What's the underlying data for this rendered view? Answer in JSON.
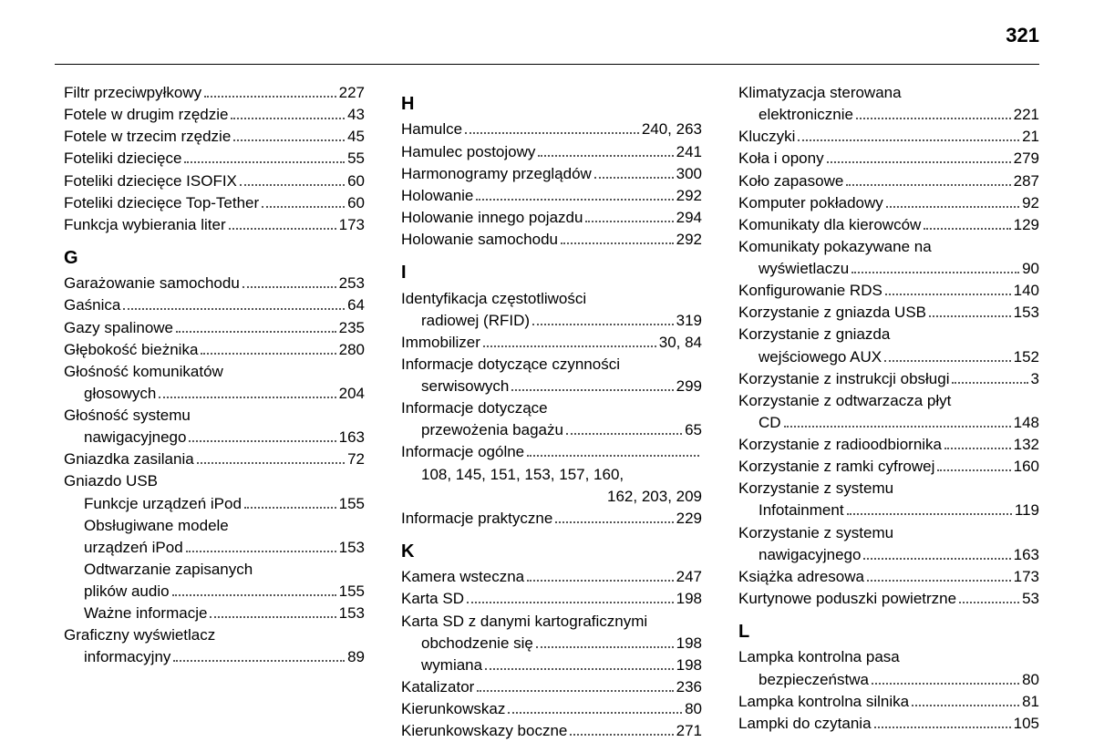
{
  "page_number": "321",
  "font_size_body": 17,
  "font_size_pagenum": 22,
  "color_text": "#000000",
  "color_bg": "#ffffff",
  "columns": [
    {
      "items": [
        {
          "type": "entry",
          "indent": 0,
          "label": "Filtr przeciwpyłkowy",
          "page": "227"
        },
        {
          "type": "entry",
          "indent": 0,
          "label": "Fotele w drugim rzędzie",
          "page": "43"
        },
        {
          "type": "entry",
          "indent": 0,
          "label": "Fotele w trzecim rzędzie",
          "page": "45"
        },
        {
          "type": "entry",
          "indent": 0,
          "label": "Foteliki dziecięce",
          "page": "55"
        },
        {
          "type": "entry",
          "indent": 0,
          "label": "Foteliki dziecięce ISOFIX",
          "page": "60"
        },
        {
          "type": "entry",
          "indent": 0,
          "label": "Foteliki dziecięce Top-Tether",
          "page": "60"
        },
        {
          "type": "entry",
          "indent": 0,
          "label": "Funkcja wybierania liter",
          "page": "173"
        },
        {
          "type": "letter",
          "value": "G"
        },
        {
          "type": "entry",
          "indent": 0,
          "label": "Garażowanie samochodu",
          "page": "253"
        },
        {
          "type": "entry",
          "indent": 0,
          "label": "Gaśnica",
          "page": "64"
        },
        {
          "type": "entry",
          "indent": 0,
          "label": "Gazy spalinowe",
          "page": "235"
        },
        {
          "type": "entry",
          "indent": 0,
          "label": "Głębokość bieżnika",
          "page": "280"
        },
        {
          "type": "text",
          "indent": 0,
          "value": "Głośność komunikatów"
        },
        {
          "type": "entry",
          "indent": 1,
          "label": "głosowych",
          "page": "204"
        },
        {
          "type": "text",
          "indent": 0,
          "value": "Głośność systemu"
        },
        {
          "type": "entry",
          "indent": 1,
          "label": "nawigacyjnego",
          "page": "163"
        },
        {
          "type": "entry",
          "indent": 0,
          "label": "Gniazdka zasilania",
          "page": "72"
        },
        {
          "type": "text",
          "indent": 0,
          "value": "Gniazdo USB"
        },
        {
          "type": "entry",
          "indent": 1,
          "label": "Funkcje urządzeń iPod",
          "page": "155"
        },
        {
          "type": "text",
          "indent": 1,
          "value": "Obsługiwane modele"
        },
        {
          "type": "entry",
          "indent": 1,
          "label": "urządzeń iPod",
          "page": "153"
        },
        {
          "type": "text",
          "indent": 1,
          "value": "Odtwarzanie zapisanych"
        },
        {
          "type": "entry",
          "indent": 1,
          "label": "plików audio",
          "page": "155"
        },
        {
          "type": "entry",
          "indent": 1,
          "label": "Ważne informacje",
          "page": "153"
        },
        {
          "type": "text",
          "indent": 0,
          "value": "Graficzny wyświetlacz"
        },
        {
          "type": "entry",
          "indent": 1,
          "label": "informacyjny",
          "page": "89"
        }
      ]
    },
    {
      "items": [
        {
          "type": "letter",
          "value": "H"
        },
        {
          "type": "entry",
          "indent": 0,
          "label": "Hamulce",
          "page": "240, 263"
        },
        {
          "type": "entry",
          "indent": 0,
          "label": "Hamulec postojowy",
          "page": "241"
        },
        {
          "type": "entry",
          "indent": 0,
          "label": "Harmonogramy przeglądów",
          "page": "300"
        },
        {
          "type": "entry",
          "indent": 0,
          "label": "Holowanie",
          "page": "292"
        },
        {
          "type": "entry",
          "indent": 0,
          "label": "Holowanie innego pojazdu",
          "page": "294"
        },
        {
          "type": "entry",
          "indent": 0,
          "label": "Holowanie samochodu",
          "page": "292"
        },
        {
          "type": "letter",
          "value": "I"
        },
        {
          "type": "text",
          "indent": 0,
          "value": "Identyfikacja częstotliwości"
        },
        {
          "type": "entry",
          "indent": 1,
          "label": "radiowej (RFID)",
          "page": "319"
        },
        {
          "type": "entry",
          "indent": 0,
          "label": "Immobilizer",
          "page": "30, 84"
        },
        {
          "type": "text",
          "indent": 0,
          "value": "Informacje dotyczące czynności"
        },
        {
          "type": "entry",
          "indent": 1,
          "label": "serwisowych",
          "page": "299"
        },
        {
          "type": "text",
          "indent": 0,
          "value": "Informacje dotyczące"
        },
        {
          "type": "entry",
          "indent": 1,
          "label": "przewożenia bagażu",
          "page": "65"
        },
        {
          "type": "entry_nodots",
          "indent": 0,
          "label": "Informacje ogólne",
          "page": ""
        },
        {
          "type": "text",
          "indent": 1,
          "value": "108, 145, 151, 153, 157, 160,"
        },
        {
          "type": "text_right",
          "value": "162, 203, 209"
        },
        {
          "type": "entry",
          "indent": 0,
          "label": "Informacje praktyczne",
          "page": "229"
        },
        {
          "type": "letter",
          "value": "K"
        },
        {
          "type": "entry",
          "indent": 0,
          "label": "Kamera wsteczna",
          "page": "247"
        },
        {
          "type": "entry",
          "indent": 0,
          "label": "Karta SD",
          "page": "198"
        },
        {
          "type": "text",
          "indent": 0,
          "value": "Karta SD z danymi kartograficznymi"
        },
        {
          "type": "entry",
          "indent": 1,
          "label": "obchodzenie się",
          "page": "198"
        },
        {
          "type": "entry",
          "indent": 1,
          "label": "wymiana",
          "page": "198"
        },
        {
          "type": "entry",
          "indent": 0,
          "label": "Katalizator",
          "page": "236"
        },
        {
          "type": "entry",
          "indent": 0,
          "label": "Kierunkowskaz",
          "page": "80"
        },
        {
          "type": "entry",
          "indent": 0,
          "label": "Kierunkowskazy boczne",
          "page": "271"
        }
      ]
    },
    {
      "items": [
        {
          "type": "text",
          "indent": 0,
          "value": "Klimatyzacja sterowana"
        },
        {
          "type": "entry",
          "indent": 1,
          "label": "elektronicznie",
          "page": "221"
        },
        {
          "type": "entry",
          "indent": 0,
          "label": "Kluczyki",
          "page": "21"
        },
        {
          "type": "entry",
          "indent": 0,
          "label": "Koła i opony",
          "page": "279"
        },
        {
          "type": "entry",
          "indent": 0,
          "label": "Koło zapasowe",
          "page": "287"
        },
        {
          "type": "entry",
          "indent": 0,
          "label": "Komputer pokładowy",
          "page": "92"
        },
        {
          "type": "entry",
          "indent": 0,
          "label": "Komunikaty dla kierowców",
          "page": "129"
        },
        {
          "type": "text",
          "indent": 0,
          "value": "Komunikaty pokazywane na"
        },
        {
          "type": "entry",
          "indent": 1,
          "label": "wyświetlaczu",
          "page": "90"
        },
        {
          "type": "entry",
          "indent": 0,
          "label": "Konfigurowanie RDS",
          "page": "140"
        },
        {
          "type": "entry",
          "indent": 0,
          "label": "Korzystanie z gniazda USB",
          "page": "153"
        },
        {
          "type": "text",
          "indent": 0,
          "value": "Korzystanie z gniazda"
        },
        {
          "type": "entry",
          "indent": 1,
          "label": "wejściowego AUX",
          "page": "152"
        },
        {
          "type": "entry",
          "indent": 0,
          "label": "Korzystanie z instrukcji obsługi",
          "page": "3"
        },
        {
          "type": "text",
          "indent": 0,
          "value": "Korzystanie z odtwarzacza płyt"
        },
        {
          "type": "entry",
          "indent": 1,
          "label": "CD",
          "page": "148"
        },
        {
          "type": "entry",
          "indent": 0,
          "label": "Korzystanie z radioodbiornika",
          "page": "132"
        },
        {
          "type": "entry",
          "indent": 0,
          "label": "Korzystanie z ramki cyfrowej",
          "page": "160"
        },
        {
          "type": "text",
          "indent": 0,
          "value": "Korzystanie z systemu"
        },
        {
          "type": "entry",
          "indent": 1,
          "label": "Infotainment",
          "page": "119"
        },
        {
          "type": "text",
          "indent": 0,
          "value": "Korzystanie z systemu"
        },
        {
          "type": "entry",
          "indent": 1,
          "label": "nawigacyjnego",
          "page": "163"
        },
        {
          "type": "entry",
          "indent": 0,
          "label": "Książka adresowa",
          "page": "173"
        },
        {
          "type": "entry",
          "indent": 0,
          "label": "Kurtynowe poduszki powietrzne",
          "page": "53"
        },
        {
          "type": "letter",
          "value": "L"
        },
        {
          "type": "text",
          "indent": 0,
          "value": "Lampka kontrolna pasa"
        },
        {
          "type": "entry",
          "indent": 1,
          "label": "bezpieczeństwa",
          "page": "80"
        },
        {
          "type": "entry",
          "indent": 0,
          "label": "Lampka kontrolna silnika",
          "page": "81"
        },
        {
          "type": "entry",
          "indent": 0,
          "label": "Lampki do czytania",
          "page": "105"
        }
      ]
    }
  ]
}
